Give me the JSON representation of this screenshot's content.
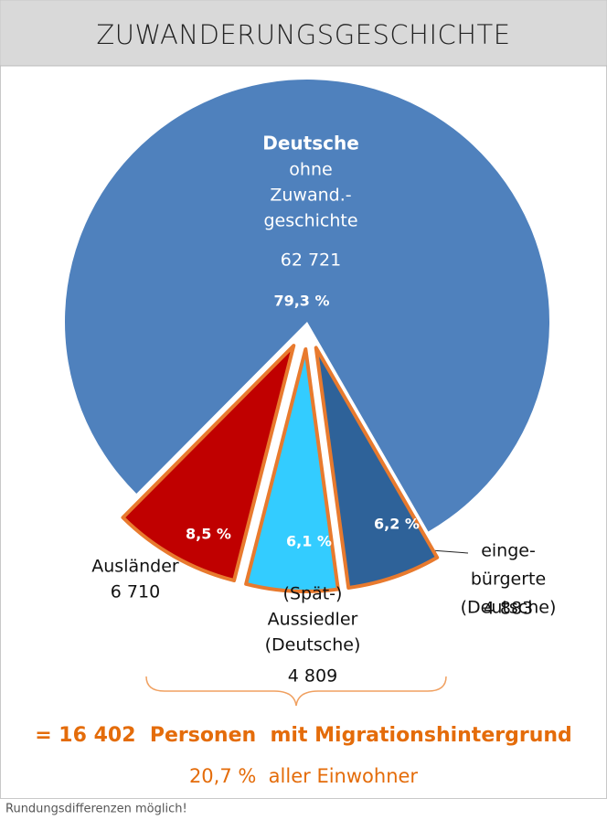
{
  "chart_data": {
    "type": "pie",
    "title": "ZUWANDERUNGSGESCHICHTE",
    "categories": [
      [
        "Deutsche",
        "ohne",
        "Zuwand.-",
        "geschichte"
      ],
      [
        "Ausländer"
      ],
      [
        "(Spät-)",
        "Aussiedler",
        "(Deutsche)"
      ],
      [
        "einge-",
        "bürgerte",
        "(Deutsche)"
      ]
    ],
    "values": [
      79.3,
      8.5,
      6.1,
      6.2
    ],
    "value_labels": [
      "79,3 %",
      "8,5 %",
      "6,1 %",
      "6,2 %"
    ],
    "counts": [
      "62 721",
      "6 710",
      "4 809",
      "4 883"
    ],
    "colors": [
      "#4f81bd",
      "#c00000",
      "#33ccff",
      "#2e6299"
    ],
    "summary": "= 16 402  Personen  mit Migrationshintergrund",
    "summary_share": "20,7 %  aller Einwohner",
    "note": "Rundungsdifferenzen möglich!"
  }
}
